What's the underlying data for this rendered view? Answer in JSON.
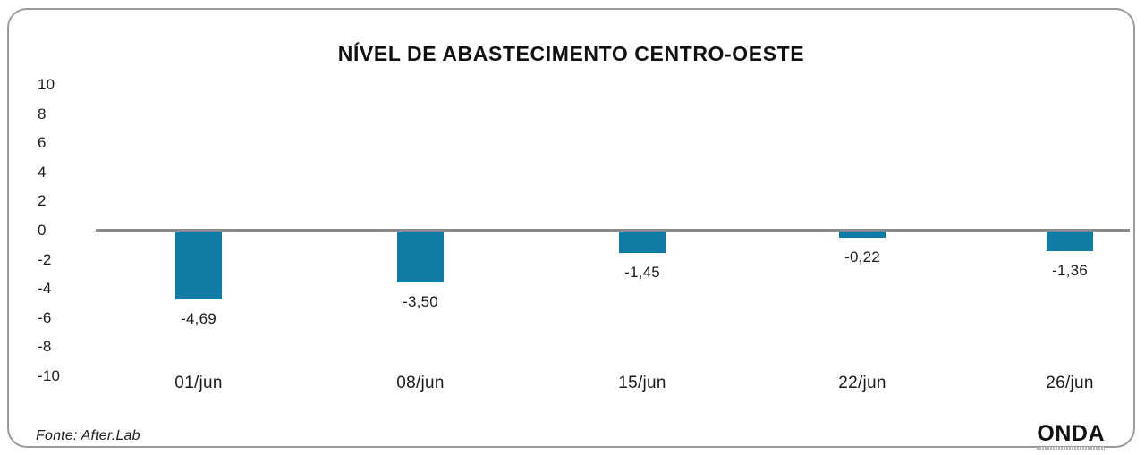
{
  "chart_data": {
    "type": "bar",
    "title": "NÍVEL DE ABASTECIMENTO CENTRO-OESTE",
    "categories": [
      "01/jun",
      "08/jun",
      "15/jun",
      "22/jun",
      "26/jun"
    ],
    "values": [
      -4.69,
      -3.5,
      -1.45,
      -0.22,
      -1.36
    ],
    "value_labels": [
      "-4,69",
      "-3,50",
      "-1,45",
      "-0,22",
      "-1,36"
    ],
    "xlabel": "",
    "ylabel": "",
    "ylim": [
      -10,
      10
    ],
    "ytick_labels": [
      "10",
      "8",
      "6",
      "4",
      "2",
      "0",
      "-2",
      "-4",
      "-6",
      "-8",
      "-10"
    ],
    "grid": false,
    "legend": "none",
    "bar_color": "#107CA6",
    "zero_line_color": "#8A8A8A"
  },
  "footer": {
    "source": "Fonte: After.Lab",
    "logo": "ONDA"
  }
}
